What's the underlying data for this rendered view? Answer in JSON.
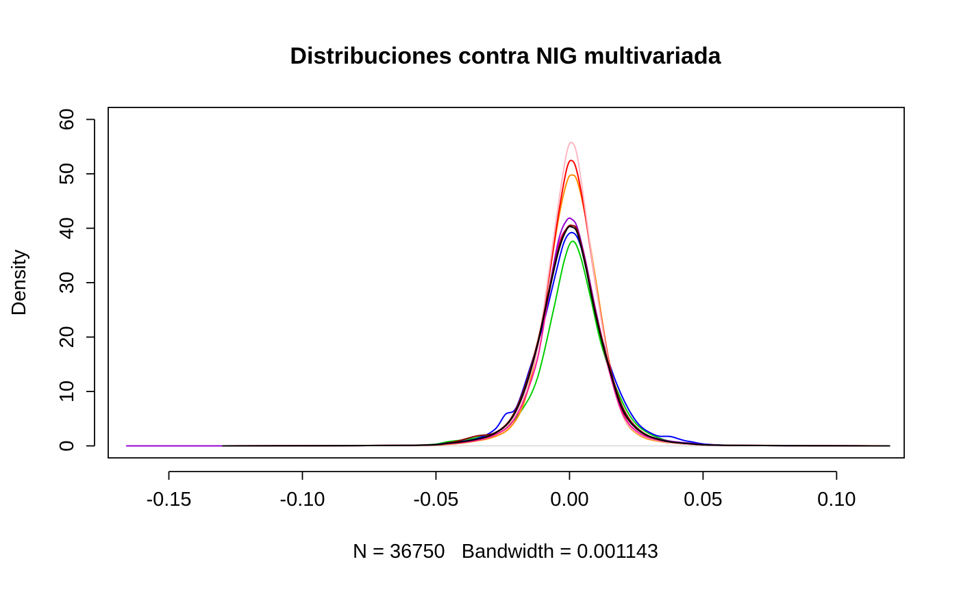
{
  "chart_data": {
    "type": "line",
    "title": "Distribuciones contra NIG multivariada",
    "xlabel": "N = 36750   Bandwidth = 0.001143",
    "ylabel": "Density",
    "xlim": [
      -0.1727,
      0.1253
    ],
    "ylim": [
      -2.2,
      62.2
    ],
    "x_ticks": [
      -0.15,
      -0.1,
      -0.05,
      0.0,
      0.05,
      0.1
    ],
    "x_tick_labels": [
      "-0.15",
      "-0.10",
      "-0.05",
      "0.00",
      "0.05",
      "0.10"
    ],
    "y_ticks": [
      0,
      10,
      20,
      30,
      40,
      50,
      60
    ],
    "y_tick_labels": [
      "0",
      "10",
      "20",
      "30",
      "40",
      "50",
      "60"
    ],
    "grid": false,
    "legend": "none",
    "series": [
      {
        "color": "#d0d0d0",
        "x": [
          -0.165,
          0.12
        ],
        "y": [
          0,
          0
        ]
      },
      {
        "color": "#00cd00",
        "x": [
          -0.13,
          -0.06,
          -0.045,
          -0.035,
          -0.025,
          -0.018,
          -0.012,
          -0.006,
          -0.002,
          0.001,
          0.004,
          0.008,
          0.012,
          0.018,
          0.025,
          0.035,
          0.045,
          0.06,
          0.12
        ],
        "y": [
          0,
          0.1,
          0.8,
          1.5,
          3.0,
          6.5,
          12.5,
          25.0,
          34.0,
          37.6,
          35.0,
          27.0,
          18.5,
          10.0,
          4.0,
          1.2,
          0.5,
          0.1,
          0
        ]
      },
      {
        "color": "#0000ff",
        "x": [
          -0.13,
          -0.06,
          -0.045,
          -0.035,
          -0.028,
          -0.024,
          -0.02,
          -0.015,
          -0.01,
          -0.005,
          -0.002,
          0.001,
          0.004,
          0.008,
          0.012,
          0.018,
          0.025,
          0.032,
          0.038,
          0.045,
          0.06,
          0.12
        ],
        "y": [
          0,
          0.1,
          0.6,
          1.3,
          3.0,
          5.8,
          7.0,
          14.0,
          22.0,
          32.0,
          37.5,
          39.2,
          37.0,
          29.0,
          20.0,
          11.0,
          4.5,
          2.0,
          1.7,
          0.8,
          0.1,
          0
        ]
      },
      {
        "color": "#ff8c00",
        "x": [
          -0.13,
          -0.06,
          -0.045,
          -0.035,
          -0.028,
          -0.022,
          -0.017,
          -0.012,
          -0.008,
          -0.004,
          -0.001,
          0.001,
          0.003,
          0.006,
          0.01,
          0.015,
          0.02,
          0.026,
          0.034,
          0.045,
          0.06,
          0.12
        ],
        "y": [
          0,
          0.1,
          0.3,
          0.9,
          1.7,
          3.5,
          8.0,
          18.0,
          30.0,
          42.0,
          48.5,
          49.8,
          48.5,
          42.0,
          30.0,
          15.0,
          5.5,
          2.0,
          0.8,
          0.3,
          0.1,
          0
        ]
      },
      {
        "color": "#ff0000",
        "x": [
          -0.13,
          -0.06,
          -0.045,
          -0.035,
          -0.028,
          -0.022,
          -0.017,
          -0.012,
          -0.008,
          -0.004,
          -0.001,
          0.001,
          0.003,
          0.006,
          0.01,
          0.015,
          0.02,
          0.026,
          0.034,
          0.045,
          0.06,
          0.12
        ],
        "y": [
          0,
          0.1,
          0.4,
          1.0,
          2.0,
          4.5,
          9.5,
          18.0,
          30.0,
          43.0,
          51.0,
          52.4,
          50.0,
          42.0,
          29.0,
          15.0,
          6.0,
          2.3,
          0.9,
          0.3,
          0.1,
          0
        ]
      },
      {
        "color": "#ffb6c1",
        "x": [
          -0.13,
          -0.06,
          -0.045,
          -0.035,
          -0.028,
          -0.022,
          -0.017,
          -0.012,
          -0.008,
          -0.004,
          -0.001,
          0.001,
          0.003,
          0.006,
          0.01,
          0.015,
          0.02,
          0.026,
          0.034,
          0.045,
          0.06,
          0.12
        ],
        "y": [
          0,
          0.1,
          0.4,
          1.0,
          2.0,
          4.5,
          9.5,
          18.0,
          31.0,
          45.0,
          54.0,
          55.7,
          53.0,
          43.0,
          29.0,
          14.5,
          5.5,
          2.2,
          0.9,
          0.3,
          0.1,
          0
        ]
      },
      {
        "color": "#ff1493",
        "x": [
          -0.13,
          -0.06,
          -0.045,
          -0.035,
          -0.028,
          -0.022,
          -0.017,
          -0.012,
          -0.008,
          -0.004,
          -0.001,
          0.001,
          0.003,
          0.006,
          0.01,
          0.015,
          0.02,
          0.026,
          0.034,
          0.045,
          0.06,
          0.12
        ],
        "y": [
          0,
          0.1,
          0.4,
          1.0,
          2.0,
          4.0,
          8.5,
          16.0,
          27.0,
          37.0,
          40.0,
          40.5,
          39.5,
          34.0,
          24.0,
          13.5,
          5.8,
          2.4,
          1.0,
          0.4,
          0.1,
          0
        ]
      },
      {
        "color": "#9400d3",
        "x": [
          -0.166,
          -0.13,
          -0.06,
          -0.045,
          -0.035,
          -0.028,
          -0.022,
          -0.017,
          -0.012,
          -0.008,
          -0.004,
          -0.001,
          0.001,
          0.003,
          0.006,
          0.01,
          0.015,
          0.02,
          0.026,
          0.034,
          0.045,
          0.06,
          0.12
        ],
        "y": [
          0,
          0,
          0.1,
          0.5,
          1.2,
          2.3,
          4.8,
          10.0,
          18.5,
          28.0,
          38.0,
          41.5,
          41.6,
          40.0,
          34.0,
          24.5,
          14.0,
          6.5,
          2.8,
          1.2,
          0.5,
          0.1,
          0
        ]
      },
      {
        "color": "#8b0000",
        "x": [
          -0.13,
          -0.06,
          -0.045,
          -0.035,
          -0.028,
          -0.022,
          -0.017,
          -0.012,
          -0.008,
          -0.004,
          -0.001,
          0.001,
          0.003,
          0.006,
          0.01,
          0.015,
          0.02,
          0.026,
          0.034,
          0.045,
          0.06,
          0.12
        ],
        "y": [
          0,
          0.1,
          0.6,
          1.8,
          2.4,
          5.0,
          10.5,
          19.0,
          28.0,
          36.5,
          40.0,
          40.5,
          39.5,
          33.5,
          24.0,
          14.5,
          7.0,
          3.0,
          1.1,
          0.4,
          0.1,
          0
        ]
      },
      {
        "color": "#000000",
        "x": [
          -0.13,
          -0.06,
          -0.045,
          -0.035,
          -0.028,
          -0.022,
          -0.017,
          -0.012,
          -0.008,
          -0.004,
          -0.001,
          0.001,
          0.003,
          0.006,
          0.01,
          0.015,
          0.02,
          0.026,
          0.034,
          0.045,
          0.06,
          0.12
        ],
        "y": [
          0,
          0.1,
          0.5,
          1.2,
          2.3,
          4.8,
          10.0,
          18.5,
          27.5,
          36.0,
          39.8,
          40.2,
          39.0,
          33.0,
          23.5,
          14.0,
          6.5,
          2.8,
          1.1,
          0.4,
          0.1,
          0
        ]
      }
    ]
  }
}
